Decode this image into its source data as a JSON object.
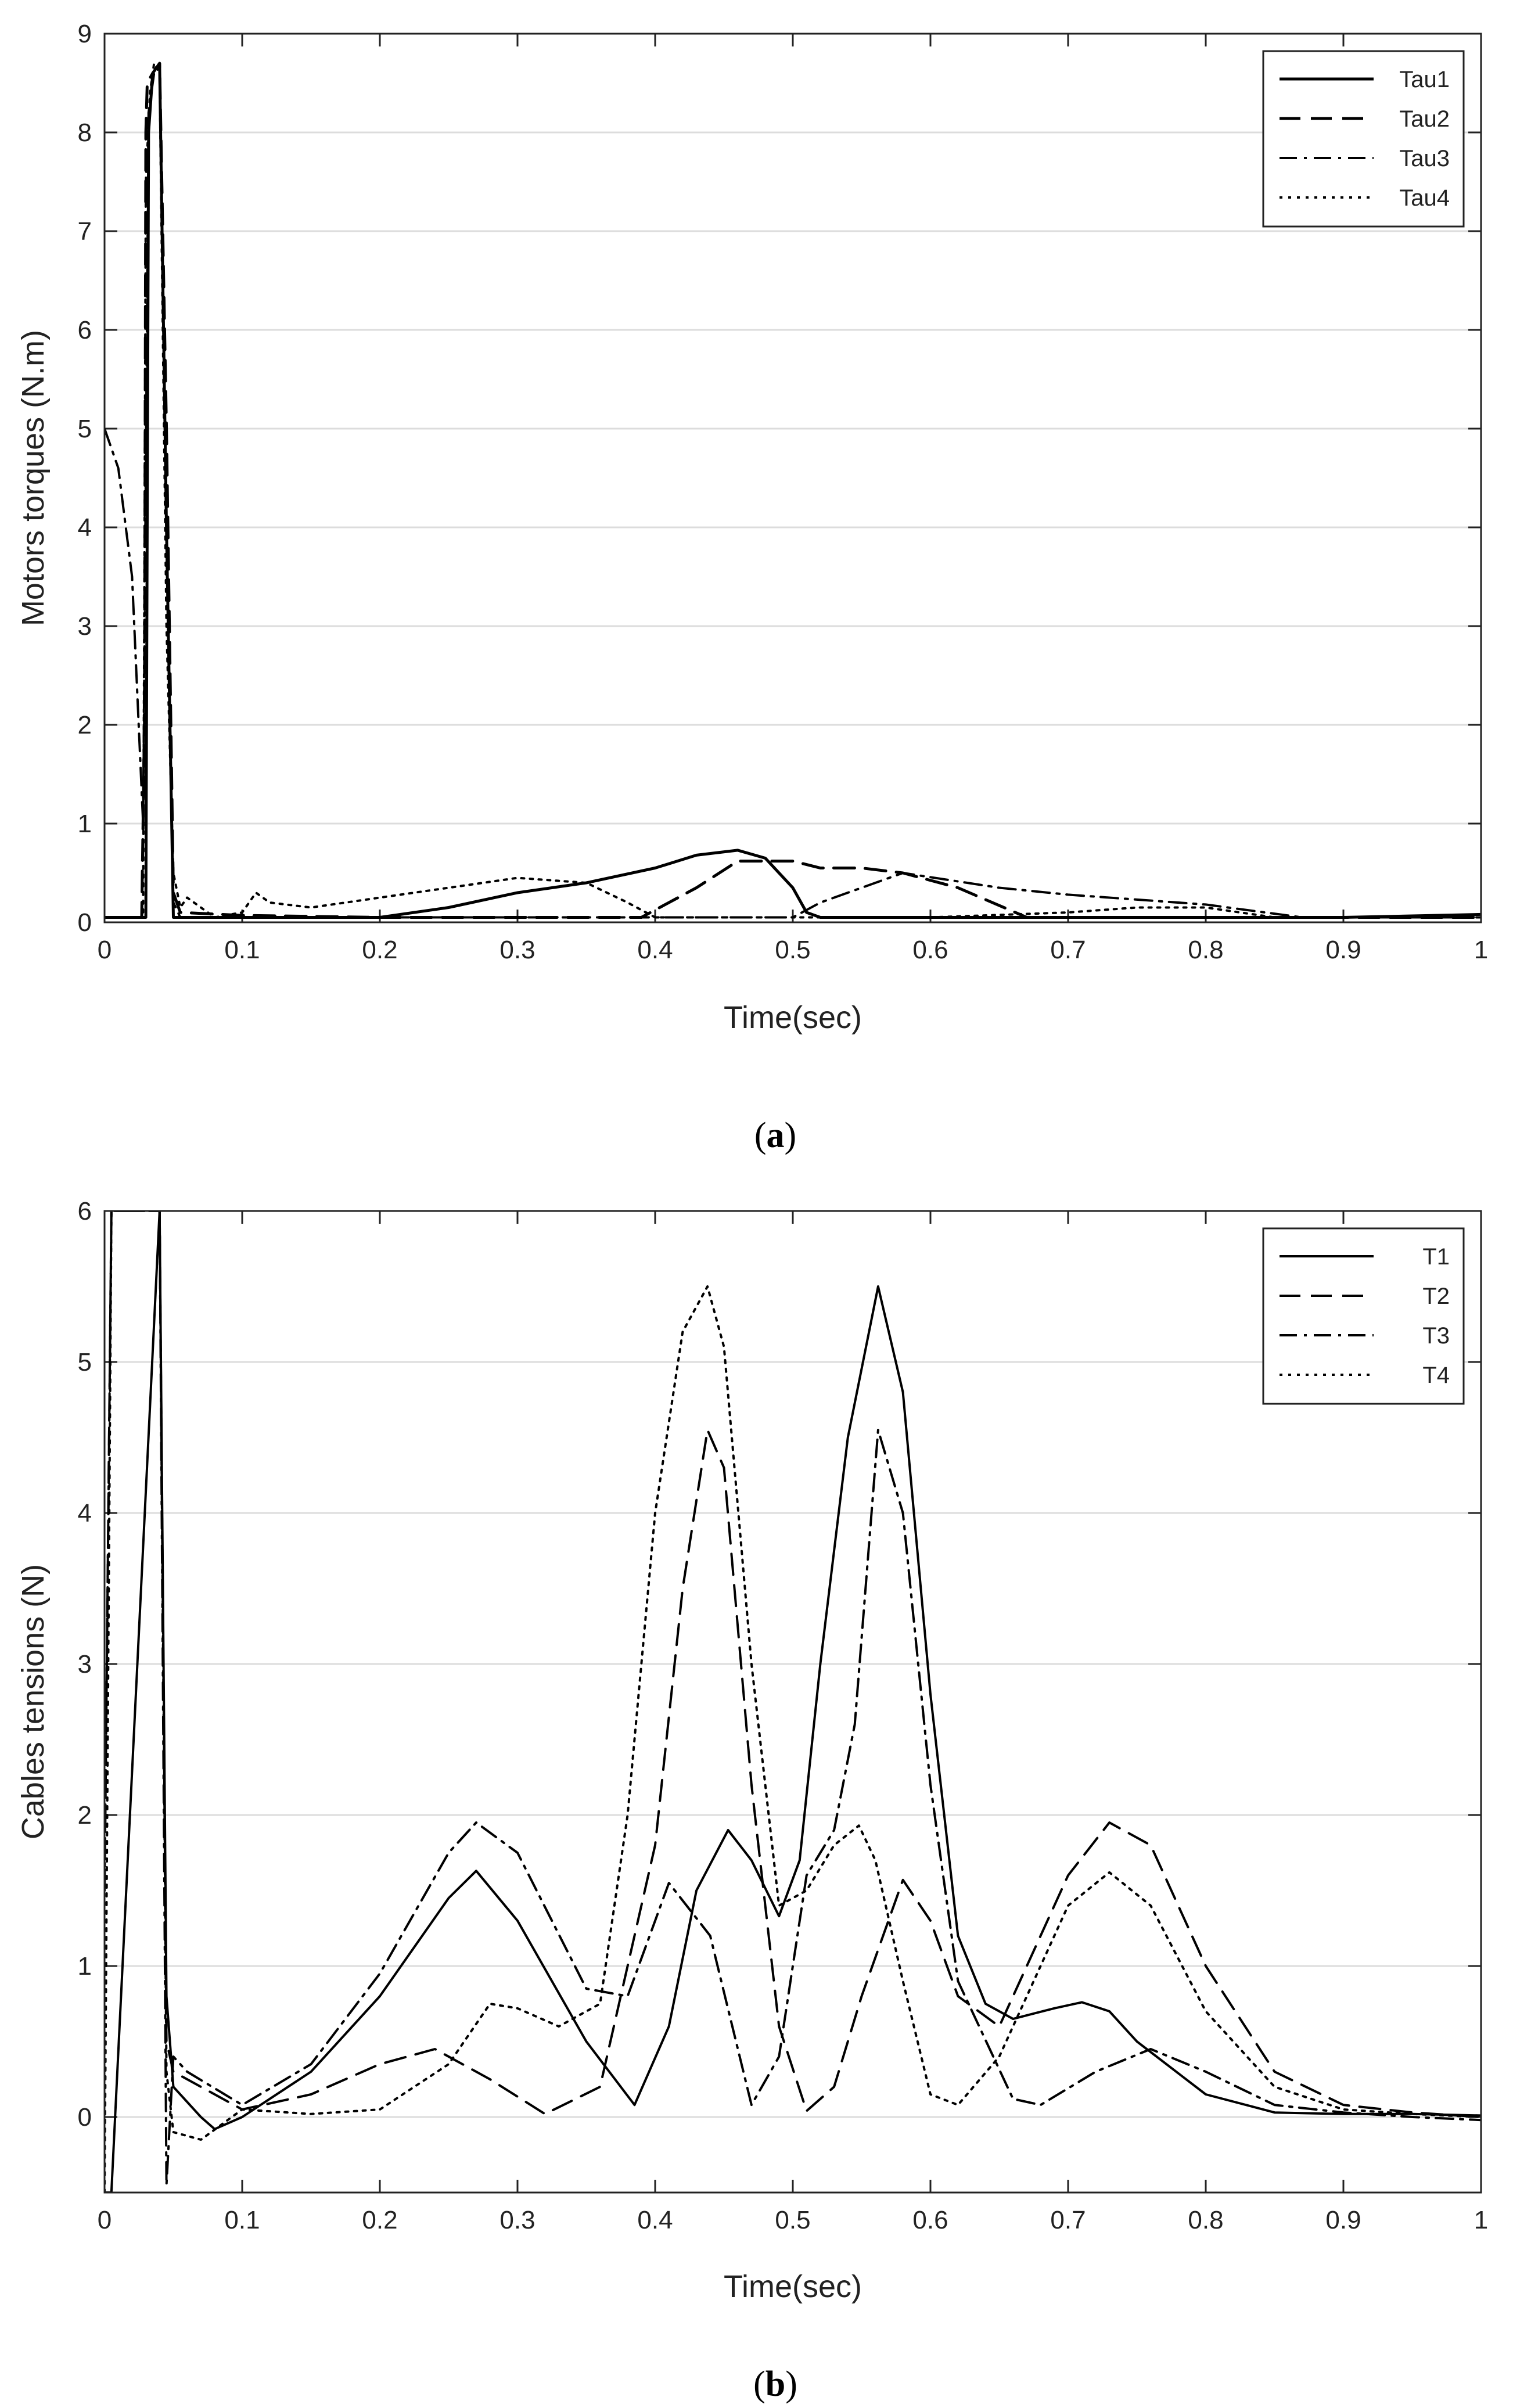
{
  "chart_data": [
    {
      "type": "line",
      "caption_letter": "a",
      "xlabel": "Time(sec)",
      "ylabel": "Motors torques (N.m)",
      "xlim": [
        0,
        1
      ],
      "ylim": [
        0,
        9
      ],
      "xticks": [
        "0",
        "0.1",
        "0.2",
        "0.3",
        "0.4",
        "0.5",
        "0.6",
        "0.7",
        "0.8",
        "0.9",
        "1"
      ],
      "yticks": [
        "0",
        "1",
        "2",
        "3",
        "4",
        "5",
        "6",
        "7",
        "8",
        "9"
      ],
      "grid": "horizontal",
      "legend_position": "top-right",
      "series": [
        {
          "name": "Tau1",
          "style": "solid",
          "width": 5,
          "x": [
            0,
            0.03,
            0.032,
            0.035,
            0.04,
            0.045,
            0.05,
            0.2,
            0.25,
            0.3,
            0.35,
            0.4,
            0.43,
            0.46,
            0.48,
            0.5,
            0.51,
            0.52,
            0.6,
            0.9,
            1
          ],
          "y": [
            0.05,
            0.05,
            8,
            8.6,
            8.7,
            4,
            0.05,
            0.05,
            0.15,
            0.3,
            0.4,
            0.55,
            0.68,
            0.73,
            0.65,
            0.35,
            0.1,
            0.05,
            0.05,
            0.05,
            0.08
          ]
        },
        {
          "name": "Tau2",
          "style": "dashed",
          "width": 5,
          "x": [
            0,
            0.027,
            0.029,
            0.03,
            0.031,
            0.035,
            0.04,
            0.045,
            0.05,
            0.055,
            0.1,
            0.2,
            0.3,
            0.39,
            0.43,
            0.46,
            0.5,
            0.52,
            0.55,
            0.58,
            0.62,
            0.67,
            0.7,
            1
          ],
          "y": [
            0.05,
            0.05,
            2,
            8,
            8.5,
            8.6,
            8.7,
            5,
            0.3,
            0.1,
            0.07,
            0.05,
            0.05,
            0.05,
            0.35,
            0.62,
            0.62,
            0.55,
            0.55,
            0.5,
            0.35,
            0.05,
            0.05,
            0.05
          ]
        },
        {
          "name": "Tau3",
          "style": "dashdot",
          "width": 4,
          "x": [
            0,
            0.01,
            0.02,
            0.028,
            0.032,
            0.036,
            0.04,
            0.045,
            0.05,
            0.055,
            0.1,
            0.2,
            0.3,
            0.4,
            0.5,
            0.52,
            0.58,
            0.65,
            0.7,
            0.8,
            0.87,
            1
          ],
          "y": [
            5,
            4.6,
            3.5,
            1,
            8.2,
            8.6,
            8.7,
            4,
            0.2,
            0.05,
            0.05,
            0.05,
            0.05,
            0.05,
            0.05,
            0.2,
            0.5,
            0.35,
            0.28,
            0.18,
            0.05,
            0.05
          ]
        },
        {
          "name": "Tau4",
          "style": "dotted",
          "width": 4,
          "x": [
            0,
            0.028,
            0.03,
            0.033,
            0.036,
            0.04,
            0.045,
            0.05,
            0.055,
            0.06,
            0.08,
            0.1,
            0.11,
            0.12,
            0.15,
            0.2,
            0.25,
            0.3,
            0.35,
            0.38,
            0.4,
            0.5,
            0.6,
            0.7,
            0.75,
            0.8,
            0.85,
            1
          ],
          "y": [
            0.05,
            0.05,
            7.5,
            8.4,
            8.7,
            8.6,
            3,
            0.5,
            0.15,
            0.25,
            0.05,
            0.1,
            0.3,
            0.2,
            0.15,
            0.25,
            0.35,
            0.45,
            0.4,
            0.2,
            0.05,
            0.05,
            0.05,
            0.1,
            0.15,
            0.15,
            0.05,
            0.05
          ]
        }
      ]
    },
    {
      "type": "line",
      "caption_letter": "b",
      "xlabel": "Time(sec)",
      "ylabel": "Cables tensions (N)",
      "xlim": [
        0,
        1
      ],
      "ylim": [
        -0.5,
        6
      ],
      "xticks": [
        "0",
        "0.1",
        "0.2",
        "0.3",
        "0.4",
        "0.5",
        "0.6",
        "0.7",
        "0.8",
        "0.9",
        "1"
      ],
      "yticks": [
        "0",
        "1",
        "2",
        "3",
        "4",
        "5",
        "6"
      ],
      "grid": "horizontal",
      "legend_position": "top-right",
      "series": [
        {
          "name": "T1",
          "style": "solid",
          "width": 4,
          "x": [
            0,
            0.005,
            0.04,
            0.045,
            0.05,
            0.06,
            0.07,
            0.08,
            0.1,
            0.15,
            0.2,
            0.25,
            0.27,
            0.3,
            0.35,
            0.385,
            0.41,
            0.43,
            0.453,
            0.47,
            0.49,
            0.505,
            0.52,
            0.54,
            0.562,
            0.58,
            0.6,
            0.62,
            0.64,
            0.66,
            0.69,
            0.71,
            0.73,
            0.75,
            0.8,
            0.85,
            0.9,
            0.95,
            1
          ],
          "y": [
            -0.5,
            -0.5,
            6,
            0.8,
            0.2,
            0.1,
            0,
            -0.08,
            0,
            0.3,
            0.8,
            1.45,
            1.63,
            1.3,
            0.5,
            0.08,
            0.6,
            1.5,
            1.9,
            1.7,
            1.33,
            1.7,
            3,
            4.5,
            5.5,
            4.8,
            2.8,
            1.2,
            0.75,
            0.65,
            0.72,
            0.76,
            0.7,
            0.5,
            0.15,
            0.03,
            0.02,
            0.02,
            0.01
          ]
        },
        {
          "name": "T2",
          "style": "dashed",
          "width": 4,
          "x": [
            0,
            0.005,
            0.04,
            0.045,
            0.05,
            0.06,
            0.1,
            0.15,
            0.2,
            0.24,
            0.28,
            0.32,
            0.36,
            0.4,
            0.42,
            0.438,
            0.45,
            0.47,
            0.49,
            0.51,
            0.53,
            0.55,
            0.58,
            0.6,
            0.62,
            0.65,
            0.7,
            0.73,
            0.76,
            0.8,
            0.85,
            0.9,
            0.95,
            1
          ],
          "y": [
            1.5,
            6,
            6,
            0.5,
            0.3,
            0.25,
            0.05,
            0.15,
            0.35,
            0.45,
            0.25,
            0.02,
            0.2,
            1.8,
            3.5,
            4.55,
            4.3,
            2.2,
            0.6,
            0.04,
            0.2,
            0.8,
            1.57,
            1.3,
            0.8,
            0.6,
            1.6,
            1.95,
            1.8,
            1.0,
            0.3,
            0.08,
            0.03,
            0.0
          ]
        },
        {
          "name": "T3",
          "style": "dashdot",
          "width": 4,
          "x": [
            0,
            0.005,
            0.01,
            0.04,
            0.045,
            0.05,
            0.06,
            0.1,
            0.15,
            0.2,
            0.25,
            0.27,
            0.3,
            0.35,
            0.38,
            0.41,
            0.44,
            0.47,
            0.49,
            0.51,
            0.53,
            0.545,
            0.562,
            0.58,
            0.6,
            0.62,
            0.66,
            0.68,
            0.72,
            0.76,
            0.8,
            0.85,
            0.9,
            0.95,
            1
          ],
          "y": [
            1.5,
            6,
            6,
            6,
            -0.45,
            0.4,
            0.3,
            0.08,
            0.35,
            0.95,
            1.75,
            1.95,
            1.75,
            0.85,
            0.8,
            1.55,
            1.2,
            0.08,
            0.4,
            1.6,
            1.9,
            2.6,
            4.55,
            4.0,
            2.2,
            0.9,
            0.12,
            0.08,
            0.3,
            0.45,
            0.3,
            0.08,
            0.03,
            0.0,
            -0.02
          ]
        },
        {
          "name": "T4",
          "style": "dotted",
          "width": 4,
          "x": [
            0,
            0.005,
            0.04,
            0.045,
            0.05,
            0.07,
            0.1,
            0.15,
            0.2,
            0.25,
            0.28,
            0.3,
            0.33,
            0.36,
            0.38,
            0.4,
            0.42,
            0.438,
            0.45,
            0.47,
            0.49,
            0.51,
            0.53,
            0.548,
            0.56,
            0.58,
            0.6,
            0.62,
            0.65,
            0.7,
            0.73,
            0.76,
            0.8,
            0.85,
            0.9,
            0.95,
            1
          ],
          "y": [
            -0.5,
            6,
            6,
            0.3,
            -0.1,
            -0.15,
            0.05,
            0.02,
            0.05,
            0.35,
            0.75,
            0.72,
            0.6,
            0.75,
            2.0,
            4.0,
            5.2,
            5.5,
            5.1,
            3.0,
            1.4,
            1.5,
            1.8,
            1.93,
            1.7,
            0.9,
            0.15,
            0.08,
            0.4,
            1.4,
            1.62,
            1.4,
            0.7,
            0.2,
            0.05,
            0.02,
            0.0
          ]
        }
      ]
    }
  ]
}
